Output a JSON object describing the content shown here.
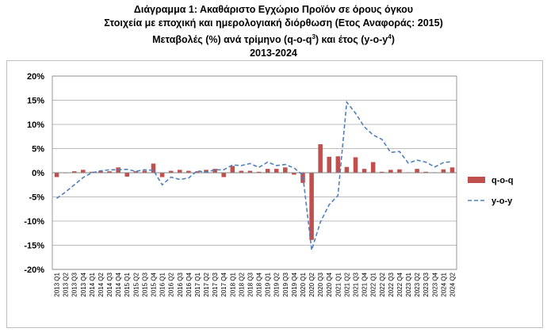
{
  "title": {
    "line1": "Διάγραμμα 1: Ακαθάριστο Εγχώριο Προϊόν σε όρους όγκου",
    "line2": "Στοιχεία με εποχική και ημερολογιακή διόρθωση (Ετος Αναφοράς: 2015)",
    "line3_a": "Μεταβολές (%) ανά τρίμηνο (q-o-q",
    "line3_sup1": "3",
    "line3_b": ") και έτος (y-o-y",
    "line3_sup2": "4",
    "line3_c": ")",
    "line4": "2013-2024"
  },
  "chart_data": {
    "type": "bar",
    "title": "Διάγραμμα 1: Ακαθάριστο Εγχώριο Προϊόν σε όρους όγκου",
    "ylim": [
      -20,
      20
    ],
    "ytick_step": 5,
    "ytick_labels": [
      "20%",
      "15%",
      "10%",
      "5%",
      "0%",
      "-5%",
      "-10%",
      "-15%",
      "-20%"
    ],
    "grid": true,
    "legend_position": "right",
    "categories": [
      "2013 Q1",
      "2013 Q2",
      "2013 Q3",
      "2013 Q4",
      "2014 Q1",
      "2014 Q2",
      "2014 Q3",
      "2014 Q4",
      "2015 Q1",
      "2015 Q2",
      "2015 Q3",
      "2015 Q4",
      "2016 Q1",
      "2016 Q2",
      "2016 Q3",
      "2016 Q4",
      "2017 Q1",
      "2017 Q2",
      "2017 Q3",
      "2017 Q4",
      "2018 Q1",
      "2018 Q2",
      "2018 Q3",
      "2018 Q4",
      "2019 Q1",
      "2019 Q2",
      "2019 Q3",
      "2019 Q4",
      "2020 Q1",
      "2020 Q2",
      "2020 Q3",
      "2020 Q4",
      "2021 Q1",
      "2021 Q2",
      "2021 Q3",
      "2021 Q4",
      "2022 Q1",
      "2022 Q2",
      "2022 Q3",
      "2022 Q4",
      "2023 Q1",
      "2023 Q2",
      "2023 Q3",
      "2023 Q4",
      "2024 Q1",
      "2024 Q2"
    ],
    "series": [
      {
        "name": "q-o-q",
        "kind": "bar",
        "color": "#c0504d",
        "values": [
          -0.9,
          -0.1,
          0.3,
          0.6,
          0.2,
          0.4,
          0.3,
          1.1,
          -0.8,
          0.3,
          0.4,
          1.9,
          -0.9,
          0.4,
          0.6,
          0.4,
          0.3,
          0.6,
          0.8,
          -0.9,
          1.4,
          0.4,
          0.4,
          0.2,
          0.8,
          0.8,
          1.1,
          -0.4,
          -2.1,
          -13.9,
          5.9,
          3.3,
          3.4,
          1.2,
          3.2,
          0.8,
          2.2,
          0.2,
          0.6,
          0.7,
          0.1,
          0.8,
          0.2,
          0.1,
          0.7,
          1.1
        ]
      },
      {
        "name": "y-o-y",
        "kind": "line",
        "color": "#4f81bd",
        "values": [
          -5.3,
          -4.0,
          -2.5,
          -1.0,
          0.0,
          0.4,
          0.6,
          0.6,
          0.7,
          0.3,
          0.6,
          0.5,
          -2.5,
          -0.9,
          -1.4,
          -1.1,
          0.4,
          0.1,
          0.6,
          0.6,
          1.6,
          1.5,
          1.9,
          1.1,
          2.2,
          1.5,
          1.7,
          1.0,
          -0.5,
          -16.0,
          -10.2,
          -6.6,
          -4.7,
          14.6,
          12.3,
          9.5,
          7.8,
          6.9,
          4.2,
          4.4,
          2.0,
          2.6,
          2.2,
          1.2,
          2.1,
          2.3
        ]
      }
    ]
  }
}
